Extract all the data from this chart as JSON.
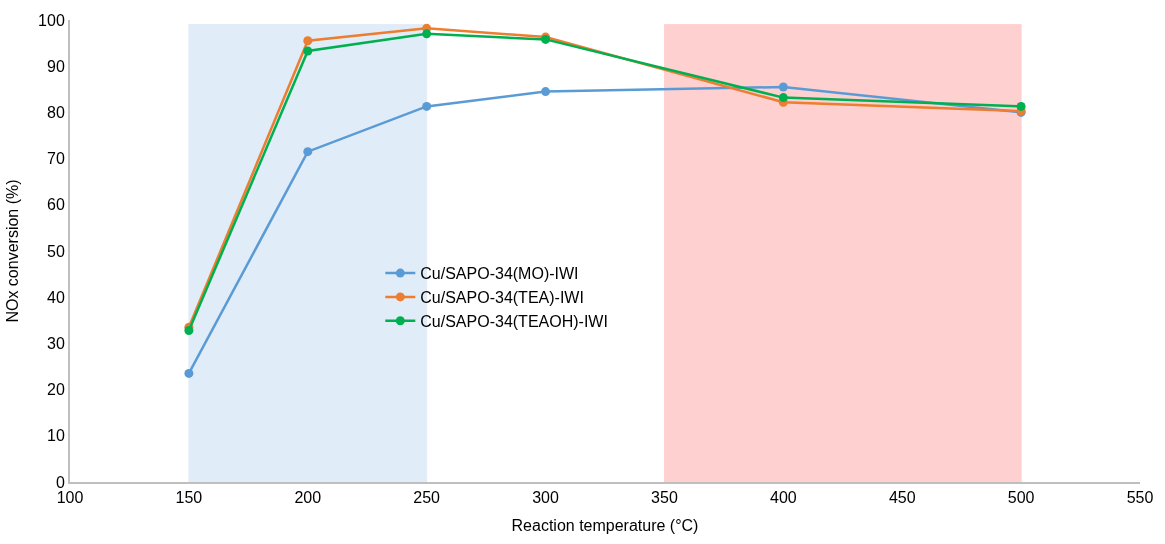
{
  "chart_data": {
    "type": "line",
    "xlabel": "Reaction temperature (°C)",
    "ylabel": "NOx conversion (%)",
    "x": [
      150,
      200,
      250,
      300,
      400,
      500
    ],
    "series": [
      {
        "name": "Cu/SAPO-34(MO)-IWI",
        "color": "#5b9bd5",
        "values": [
          23.5,
          71.5,
          81.3,
          84.5,
          85.5,
          80
        ]
      },
      {
        "name": "Cu/SAPO-34(TEA)-IWI",
        "color": "#ed7d31",
        "values": [
          33.5,
          95.5,
          98.2,
          96.3,
          82.2,
          80.3
        ]
      },
      {
        "name": "Cu/SAPO-34(TEAOH)-IWI",
        "color": "#00b050",
        "values": [
          32.8,
          93.3,
          97,
          95.8,
          83.2,
          81.3
        ]
      }
    ],
    "bands": [
      {
        "axis": "x",
        "from": 150,
        "to": 250,
        "color": "#5b9bd5"
      },
      {
        "axis": "x",
        "from": 350,
        "to": 500,
        "color": "#ff0000"
      }
    ],
    "xlim": [
      100,
      550
    ],
    "xticks": [
      100,
      150,
      200,
      250,
      300,
      350,
      400,
      450,
      500,
      550
    ],
    "ylim": [
      0,
      100
    ],
    "yticks": [
      0,
      10,
      20,
      30,
      40,
      50,
      60,
      70,
      80,
      90,
      100
    ],
    "grid": false,
    "legend": "center",
    "marker": "circle",
    "line_style": "solid"
  }
}
